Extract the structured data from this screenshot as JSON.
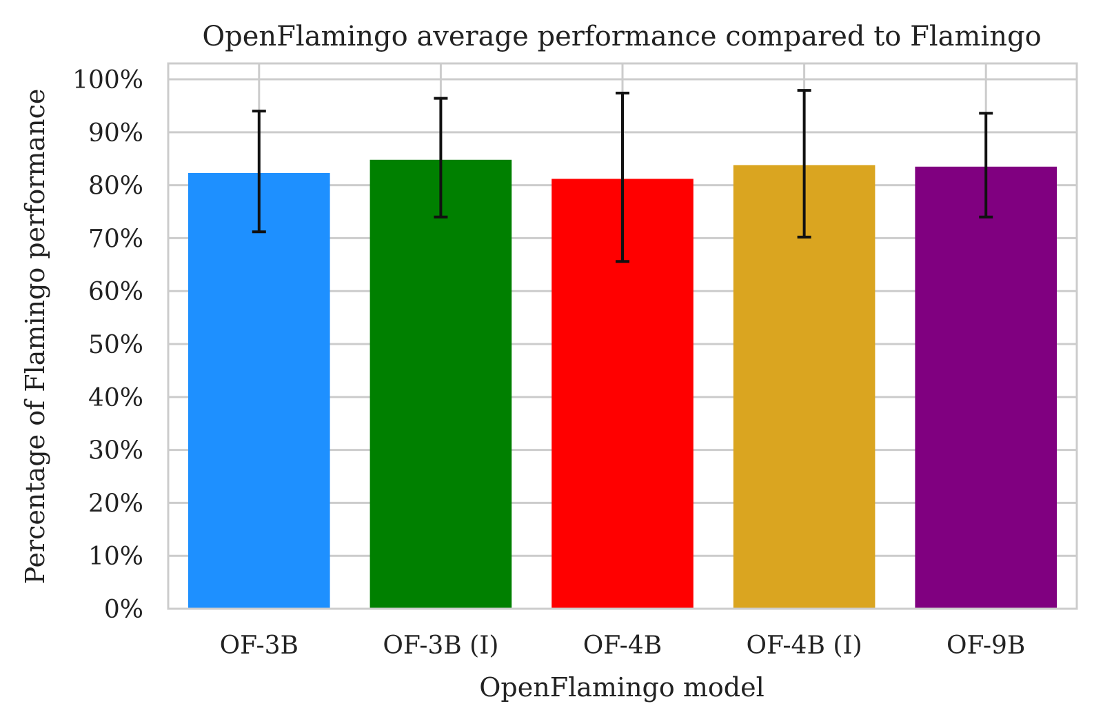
{
  "chart_data": {
    "type": "bar",
    "title": "OpenFlamingo average performance compared to Flamingo",
    "xlabel": "OpenFlamingo model",
    "ylabel": "Percentage of Flamingo performance",
    "categories": [
      "OF-3B",
      "OF-3B (I)",
      "OF-4B",
      "OF-4B (I)",
      "OF-9B"
    ],
    "values": [
      82.3,
      84.8,
      81.2,
      83.8,
      83.5
    ],
    "error_low": [
      71.2,
      74.0,
      65.6,
      70.2,
      74.0
    ],
    "error_high": [
      94.0,
      96.4,
      97.4,
      97.9,
      93.6
    ],
    "colors": [
      "#1e90ff",
      "#008000",
      "#ff0000",
      "#daa520",
      "#800080"
    ],
    "error_bar_color": "#111111",
    "ylim": [
      0,
      103
    ],
    "yticks": [
      0,
      10,
      20,
      30,
      40,
      50,
      60,
      70,
      80,
      90,
      100
    ],
    "ytick_labels": [
      "0%",
      "10%",
      "20%",
      "30%",
      "40%",
      "50%",
      "60%",
      "70%",
      "80%",
      "90%",
      "100%"
    ],
    "grid": true,
    "grid_color": "#cccccc",
    "legend": false
  }
}
